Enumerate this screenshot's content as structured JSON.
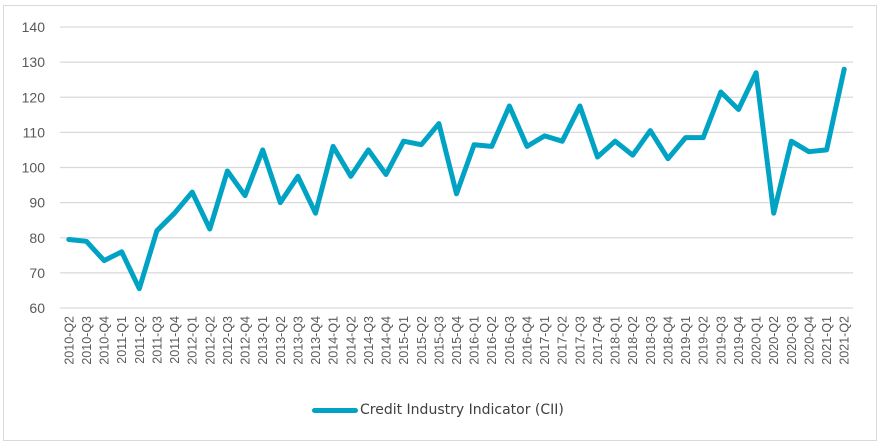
{
  "chart_data": {
    "type": "line",
    "title": "",
    "xlabel": "",
    "ylabel": "",
    "ylim": [
      60,
      140
    ],
    "yticks": [
      60,
      70,
      80,
      90,
      100,
      110,
      120,
      130,
      140
    ],
    "grid": true,
    "legend_position": "bottom",
    "categories": [
      "2010-Q2",
      "2010-Q3",
      "2010-Q4",
      "2011-Q1",
      "2011-Q2",
      "2011-Q3",
      "2011-Q4",
      "2012-Q1",
      "2012-Q2",
      "2012-Q3",
      "2012-Q4",
      "2013-Q1",
      "2013-Q2",
      "2013-Q3",
      "2013-Q4",
      "2014-Q1",
      "2014-Q2",
      "2014-Q3",
      "2014-Q4",
      "2015-Q1",
      "2015-Q2",
      "2015-Q3",
      "2015-Q4",
      "2016-Q1",
      "2016-Q2",
      "2016-Q3",
      "2016-Q4",
      "2017-Q1",
      "2017-Q2",
      "2017-Q3",
      "2017-Q4",
      "2018-Q1",
      "2018-Q2",
      "2018-Q3",
      "2018-Q4",
      "2019-Q1",
      "2019-Q2",
      "2019-Q3",
      "2019-Q4",
      "2020-Q1",
      "2020-Q2",
      "2020-Q3",
      "2020-Q4",
      "2021-Q1",
      "2021-Q2"
    ],
    "series": [
      {
        "name": "Credit Industry Indicator (CII)",
        "color": "#00A3C4",
        "values": [
          79.5,
          79,
          73.5,
          76,
          65.5,
          82,
          87,
          93,
          82.5,
          99,
          92,
          105,
          90,
          97.5,
          87,
          106,
          97.5,
          105,
          98,
          107.5,
          106.5,
          112.5,
          92.5,
          106.5,
          106,
          117.5,
          106,
          109,
          107.5,
          117.5,
          103,
          107.5,
          103.5,
          110.5,
          102.5,
          108.5,
          108.5,
          121.5,
          116.5,
          127,
          87,
          107.5,
          104.5,
          105,
          128
        ]
      }
    ]
  },
  "legend": {
    "label": "Credit Industry Indicator (CII)",
    "color": "#00A3C4"
  }
}
